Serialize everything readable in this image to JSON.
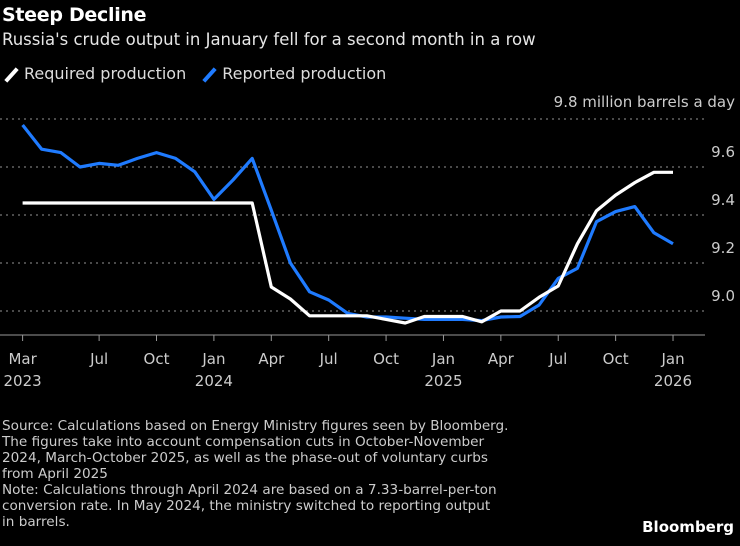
{
  "title": "Steep Decline",
  "subtitle": "Russia's crude output in January fell for a second month in a row",
  "source_lines": [
    "Source: Calculations based on Energy Ministry figures seen by Bloomberg.",
    "The figures take into account compensation cuts in October-November",
    "2024, March-October 2025, as well as the phase-out of voluntary curbs",
    "from April 2025",
    "Note: Calculations through April 2024 are based on a 7.33-barrel-per-ton",
    "conversion rate. In May 2024, the ministry switched to reporting output",
    "in barrels."
  ],
  "logo": "Bloomberg",
  "chart_data": {
    "type": "line",
    "title": "Steep Decline",
    "ylabel": "million barrels a day",
    "unit_label": "9.8 million barrels a day",
    "ylim": [
      8.93,
      9.8
    ],
    "yticks": [
      9.0,
      9.2,
      9.4,
      9.6,
      9.8
    ],
    "ytick_labels": [
      "9.0",
      "9.2",
      "9.4",
      "9.6"
    ],
    "grid": true,
    "legend_placement": "top-left",
    "x": [
      "2023-03",
      "2023-04",
      "2023-05",
      "2023-06",
      "2023-07",
      "2023-08",
      "2023-09",
      "2023-10",
      "2023-11",
      "2023-12",
      "2024-01",
      "2024-02",
      "2024-03",
      "2024-04",
      "2024-05",
      "2024-06",
      "2024-07",
      "2024-08",
      "2024-09",
      "2024-10",
      "2024-11",
      "2024-12",
      "2025-01",
      "2025-02",
      "2025-03",
      "2025-04",
      "2025-05",
      "2025-06",
      "2025-07",
      "2025-08",
      "2025-09",
      "2025-10",
      "2025-11",
      "2025-12",
      "2026-01"
    ],
    "xticks": [
      {
        "month": "2023-03",
        "label": "Mar",
        "year": "2023"
      },
      {
        "month": "2023-07",
        "label": "Jul",
        "year": ""
      },
      {
        "month": "2023-10",
        "label": "Oct",
        "year": ""
      },
      {
        "month": "2024-01",
        "label": "Jan",
        "year": "2024"
      },
      {
        "month": "2024-04",
        "label": "Apr",
        "year": ""
      },
      {
        "month": "2024-07",
        "label": "Jul",
        "year": ""
      },
      {
        "month": "2024-10",
        "label": "Oct",
        "year": ""
      },
      {
        "month": "2025-01",
        "label": "Jan",
        "year": "2025"
      },
      {
        "month": "2025-04",
        "label": "Apr",
        "year": ""
      },
      {
        "month": "2025-07",
        "label": "Jul",
        "year": ""
      },
      {
        "month": "2025-10",
        "label": "Oct",
        "year": ""
      },
      {
        "month": "2026-01",
        "label": "Jan",
        "year": "2026"
      }
    ],
    "series": [
      {
        "name": "Required production",
        "color": "#ffffff",
        "values": [
          9.45,
          9.45,
          9.45,
          9.45,
          9.45,
          9.45,
          9.45,
          9.45,
          9.45,
          9.45,
          9.45,
          9.45,
          9.45,
          9.1,
          9.05,
          8.98,
          8.98,
          8.98,
          8.98,
          8.965,
          8.95,
          8.977,
          8.977,
          8.977,
          8.955,
          9.0,
          9.0,
          9.057,
          9.104,
          9.28,
          9.418,
          9.483,
          9.535,
          9.578,
          9.578
        ]
      },
      {
        "name": "Reported production",
        "color": "#1f7bff",
        "values": [
          9.775,
          9.674,
          9.66,
          9.6,
          9.615,
          9.607,
          9.636,
          9.66,
          9.636,
          9.58,
          9.465,
          9.546,
          9.636,
          9.42,
          9.2,
          9.08,
          9.046,
          8.99,
          8.975,
          8.975,
          8.97,
          8.965,
          8.965,
          8.965,
          8.96,
          8.975,
          8.977,
          9.025,
          9.136,
          9.178,
          9.372,
          9.414,
          9.435,
          9.326,
          9.28
        ]
      }
    ]
  }
}
